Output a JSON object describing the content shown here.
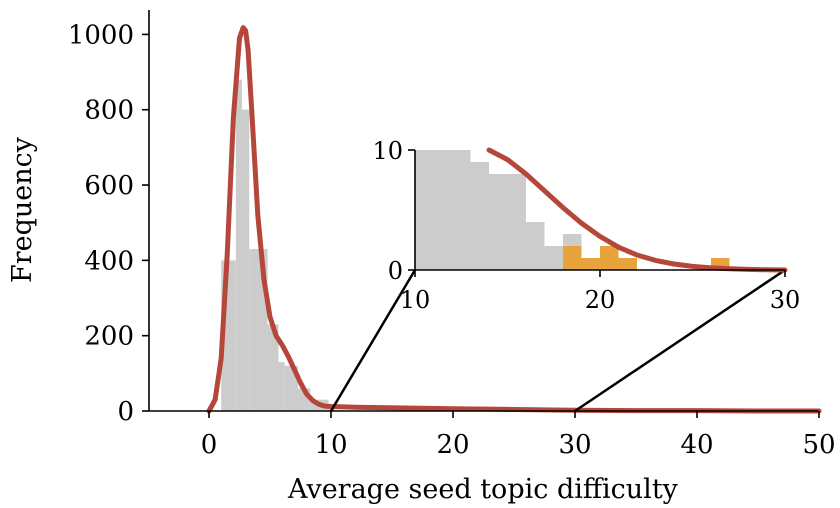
{
  "chart_data": [
    {
      "type": "histogram",
      "role": "main",
      "xlabel": "Average seed topic difficulty",
      "ylabel": "Frequency",
      "xlim": [
        -5,
        50
      ],
      "ylim": [
        0,
        1040
      ],
      "xticks": [
        0,
        10,
        20,
        30,
        40,
        50
      ],
      "xtick_labels": [
        "0",
        "10",
        "20",
        "30",
        "40",
        "50"
      ],
      "yticks": [
        0,
        200,
        400,
        600,
        800,
        1000
      ],
      "ytick_labels": [
        "0",
        "200",
        "400",
        "600",
        "800",
        "1000"
      ],
      "histogram": {
        "color": "#cccccc",
        "bins": [
          {
            "x0": 1.0,
            "x1": 2.2,
            "value": 400
          },
          {
            "x0": 2.2,
            "x1": 2.7,
            "value": 880
          },
          {
            "x0": 2.7,
            "x1": 3.3,
            "value": 800
          },
          {
            "x0": 3.3,
            "x1": 4.8,
            "value": 430
          },
          {
            "x0": 4.8,
            "x1": 5.7,
            "value": 230
          },
          {
            "x0": 5.7,
            "x1": 6.2,
            "value": 130
          },
          {
            "x0": 6.2,
            "x1": 7.3,
            "value": 120
          },
          {
            "x0": 7.3,
            "x1": 8.3,
            "value": 60
          },
          {
            "x0": 8.3,
            "x1": 9.8,
            "value": 30
          },
          {
            "x0": 9.8,
            "x1": 10.3,
            "value": 8
          }
        ]
      },
      "kde": {
        "color": "#b5473a",
        "x": [
          0,
          0.5,
          1,
          1.5,
          2,
          2.5,
          2.8,
          3.0,
          3.2,
          3.5,
          4,
          4.5,
          5,
          5.5,
          6,
          6.5,
          7,
          7.5,
          8,
          8.5,
          9,
          9.5,
          10,
          11,
          12,
          14,
          16,
          20,
          25,
          30,
          35,
          40,
          45,
          50
        ],
        "y": [
          0,
          30,
          140,
          420,
          780,
          990,
          1018,
          1010,
          960,
          800,
          520,
          350,
          250,
          200,
          175,
          145,
          110,
          75,
          45,
          28,
          18,
          13,
          12,
          11,
          10,
          9,
          8,
          6,
          4,
          2,
          1,
          1,
          0,
          0
        ]
      }
    },
    {
      "type": "histogram",
      "role": "inset",
      "xlim": [
        10,
        30
      ],
      "ylim": [
        0,
        10
      ],
      "xticks": [
        10,
        20,
        30
      ],
      "xtick_labels": [
        "10",
        "20",
        "30"
      ],
      "yticks": [
        0,
        10
      ],
      "ytick_labels": [
        "0",
        "10"
      ],
      "zoom_region": {
        "x0": 10,
        "x1": 30
      },
      "histogram": {
        "color": "#cccccc",
        "bins": [
          {
            "x0": 10,
            "x1": 13,
            "value": 10
          },
          {
            "x0": 13,
            "x1": 14,
            "value": 9
          },
          {
            "x0": 14,
            "x1": 16,
            "value": 8
          },
          {
            "x0": 16,
            "x1": 17,
            "value": 4
          },
          {
            "x0": 17,
            "x1": 18,
            "value": 2
          },
          {
            "x0": 18,
            "x1": 19,
            "value": 3
          }
        ]
      },
      "highlight_bins": {
        "color": "#e8a33d",
        "bins": [
          {
            "x0": 18,
            "x1": 19,
            "value": 2
          },
          {
            "x0": 19,
            "x1": 20,
            "value": 1
          },
          {
            "x0": 20,
            "x1": 21,
            "value": 2
          },
          {
            "x0": 21,
            "x1": 22,
            "value": 1
          },
          {
            "x0": 26,
            "x1": 27,
            "value": 1
          }
        ]
      },
      "kde": {
        "color": "#b5473a",
        "x": [
          14.0,
          15,
          16,
          17,
          18,
          19,
          20,
          21,
          22,
          23,
          24,
          25,
          26,
          27,
          28,
          29,
          30
        ],
        "y": [
          10.0,
          9.2,
          8.0,
          6.6,
          5.2,
          3.9,
          2.8,
          1.9,
          1.25,
          0.8,
          0.5,
          0.3,
          0.18,
          0.1,
          0.05,
          0.02,
          0
        ]
      }
    }
  ]
}
